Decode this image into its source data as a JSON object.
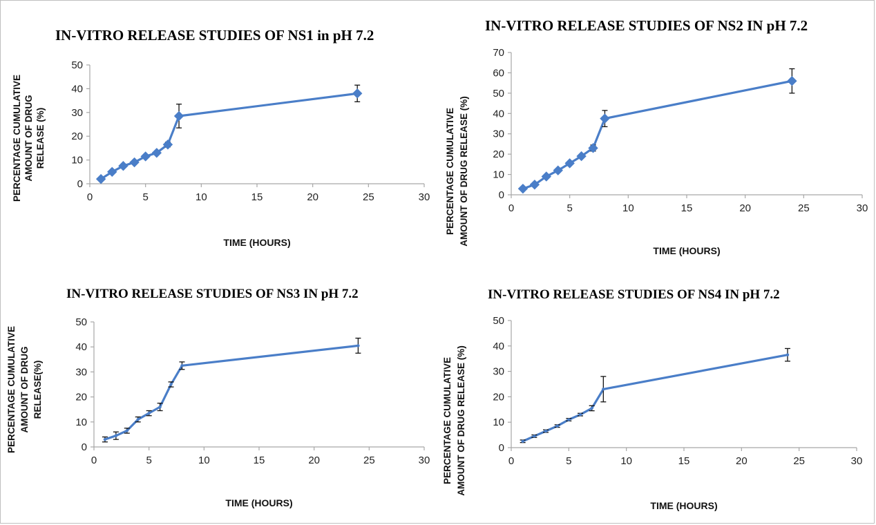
{
  "colors": {
    "series": "#4a7ec8",
    "error_bar": "#111111",
    "axis": "#a6a6a6"
  },
  "chart_data": [
    {
      "type": "line",
      "title": "IN-VITRO RELEASE STUDIES OF NS1 in pH 7.2",
      "xlabel": "TIME (HOURS)",
      "ylabel": [
        "PERCENTAGE CUMULATIVE",
        "AMOUNT OF  DRUG",
        "RELEASE (%)"
      ],
      "xlim": [
        0,
        30
      ],
      "ylim": [
        0,
        50
      ],
      "xticks": [
        "0",
        "5",
        "10",
        "15",
        "20",
        "25",
        "30"
      ],
      "yticks": [
        "0",
        "10",
        "20",
        "30",
        "40",
        "50"
      ],
      "marker": "diamond",
      "x": [
        1,
        2,
        3,
        4,
        5,
        6,
        7,
        8,
        24
      ],
      "y": [
        2,
        5,
        7.5,
        9,
        11.5,
        13,
        16.5,
        28.5,
        38
      ],
      "error": [
        0.5,
        0.5,
        0.5,
        0.5,
        0.5,
        0.5,
        1,
        5,
        3.5
      ],
      "grid": false,
      "legend": "none"
    },
    {
      "type": "line",
      "title": "IN-VITRO RELEASE STUDIES OF NS2 IN pH 7.2",
      "xlabel": "TIME (HOURS)",
      "ylabel": [
        "PERCENTAGE CUMULATIVE",
        "AMOUNT OF DRUG RELEASE (%)"
      ],
      "xlim": [
        0,
        30
      ],
      "ylim": [
        0,
        70
      ],
      "xticks": [
        "0",
        "5",
        "10",
        "15",
        "20",
        "25",
        "30"
      ],
      "yticks": [
        "0",
        "10",
        "20",
        "30",
        "40",
        "50",
        "60",
        "70"
      ],
      "marker": "diamond",
      "x": [
        1,
        2,
        3,
        4,
        5,
        6,
        7,
        8,
        24
      ],
      "y": [
        3,
        5,
        9,
        12,
        15.5,
        19,
        23,
        37.5,
        56
      ],
      "error": [
        0.5,
        0.5,
        0.5,
        0.5,
        0.5,
        0.5,
        1.5,
        4,
        6
      ],
      "grid": false,
      "legend": "none"
    },
    {
      "type": "line",
      "title": "IN-VITRO RELEASE STUDIES OF NS3 IN pH 7.2",
      "xlabel": "TIME (HOURS)",
      "ylabel": [
        "PERCENTAGE CUMULATIVE",
        "AMOUNT OF DRUG",
        "RELEASE(%)"
      ],
      "xlim": [
        0,
        30
      ],
      "ylim": [
        0,
        50
      ],
      "xticks": [
        "0",
        "5",
        "10",
        "15",
        "20",
        "25",
        "30"
      ],
      "yticks": [
        "0",
        "10",
        "20",
        "30",
        "40",
        "50"
      ],
      "marker": "none",
      "x": [
        1,
        2,
        3,
        4,
        5,
        6,
        7,
        8,
        24
      ],
      "y": [
        3,
        4.5,
        6.5,
        11,
        13.5,
        16,
        25,
        32.5,
        40.5
      ],
      "error": [
        1,
        1.5,
        1,
        1,
        1,
        1.5,
        1,
        1.5,
        3
      ],
      "grid": false,
      "legend": "none"
    },
    {
      "type": "line",
      "title": "IN-VITRO RELEASE STUDIES OF NS4 IN pH 7.2",
      "xlabel": "TIME (HOURS)",
      "ylabel": [
        "PERCENTAGE CUMULATIVE",
        "AMOUNT OF DRUG RELEASE (%)"
      ],
      "xlim": [
        0,
        30
      ],
      "ylim": [
        0,
        50
      ],
      "xticks": [
        "0",
        "5",
        "10",
        "15",
        "20",
        "25",
        "30"
      ],
      "yticks": [
        "0",
        "10",
        "20",
        "30",
        "40",
        "50"
      ],
      "marker": "none",
      "x": [
        1,
        2,
        3,
        4,
        5,
        6,
        7,
        8,
        24
      ],
      "y": [
        2.5,
        4.5,
        6.5,
        8.5,
        11,
        13,
        15.5,
        23,
        36.5
      ],
      "error": [
        0.5,
        0.5,
        0.5,
        0.5,
        0.5,
        0.5,
        1,
        5,
        2.5
      ],
      "grid": false,
      "legend": "none"
    }
  ]
}
